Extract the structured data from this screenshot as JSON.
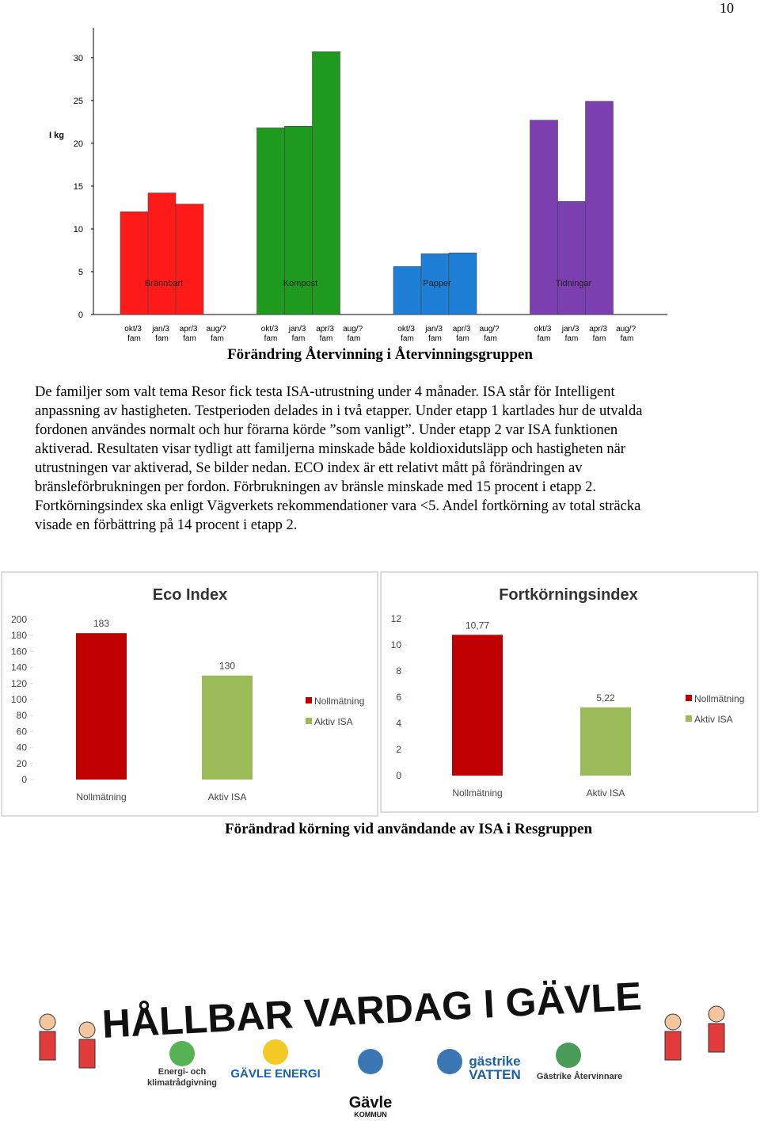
{
  "page_number": "10",
  "chart_data": [
    {
      "type": "bar",
      "y_label": "I kg",
      "categories": [
        "okt/3 fam",
        "jan/3 fam",
        "apr/3 fam",
        "aug/? fam"
      ],
      "series": [
        {
          "name": "Brännbart",
          "color": "#ff1a1a",
          "values": [
            12,
            14.2,
            12.9,
            null
          ]
        },
        {
          "name": "Kompost",
          "color": "#1e9a1e",
          "values": [
            21.8,
            22.0,
            30.7,
            null
          ]
        },
        {
          "name": "Papper",
          "color": "#1f7fd6",
          "values": [
            5.6,
            7.1,
            7.2,
            null
          ]
        },
        {
          "name": "Tidningar",
          "color": "#7b3fb0",
          "values": [
            22.7,
            13.2,
            24.9,
            null
          ]
        }
      ],
      "ylim": [
        0,
        33.5
      ],
      "yticks": [
        0,
        5,
        10,
        15,
        20,
        25,
        30
      ]
    },
    {
      "type": "bar",
      "title": "Eco Index",
      "categories": [
        "Nollmätning",
        "Aktiv ISA"
      ],
      "values": [
        183,
        130
      ],
      "colors": [
        "#c00000",
        "#9bbb59"
      ],
      "ylim": [
        0,
        200
      ],
      "yticks": [
        0,
        20,
        40,
        60,
        80,
        100,
        120,
        140,
        160,
        180,
        200
      ],
      "legend": "right"
    },
    {
      "type": "bar",
      "title": "Fortkörningsindex",
      "categories": [
        "Nollmätning",
        "Aktiv ISA"
      ],
      "values": [
        10.77,
        5.22
      ],
      "value_labels": [
        "10,77",
        "5,22"
      ],
      "colors": [
        "#c00000",
        "#9bbb59"
      ],
      "ylim": [
        0,
        12
      ],
      "yticks": [
        0,
        2,
        4,
        6,
        8,
        10,
        12
      ],
      "legend": "right"
    }
  ],
  "captions": [
    "Förändring Återvinning i Återvinningsgruppen",
    "Förändrad körning vid användande av ISA i Resgruppen"
  ],
  "paragraph": [
    "De familjer som valt tema Resor fick testa ISA-utrustning under 4 månader. ISA står för Intelligent",
    "anpassning av hastigheten. Testperioden delades in i två etapper. Under etapp 1 kartlades hur de utvalda",
    "fordonen användes normalt och hur förarna körde ”som vanligt”. Under etapp 2 var ISA funktionen",
    "aktiverad. Resultaten visar tydligt att familjerna minskade både koldioxidutsläpp och hastigheten när",
    "utrustningen var aktiverad, Se bilder nedan. ECO index är ett relativt mått på förändringen av",
    "bränsleförbrukningen per fordon. Förbrukningen av bränsle minskade med 15 procent i etapp 2.",
    "Fortkörningsindex ska enligt Vägverkets rekommendationer vara <5. Andel fortkörning av total sträcka",
    "visade en förbättring på 14 procent i etapp 2."
  ],
  "footer": {
    "title": "HÅLLBAR VARDAG I GÄVLE",
    "logos": [
      "Energi- och",
      "klimatrådgivning",
      "GÄVLE ENERGI",
      "Gävle",
      "KOMMUN",
      "gästrike",
      "VATTEN",
      "Gästrike Återvinnare"
    ]
  }
}
